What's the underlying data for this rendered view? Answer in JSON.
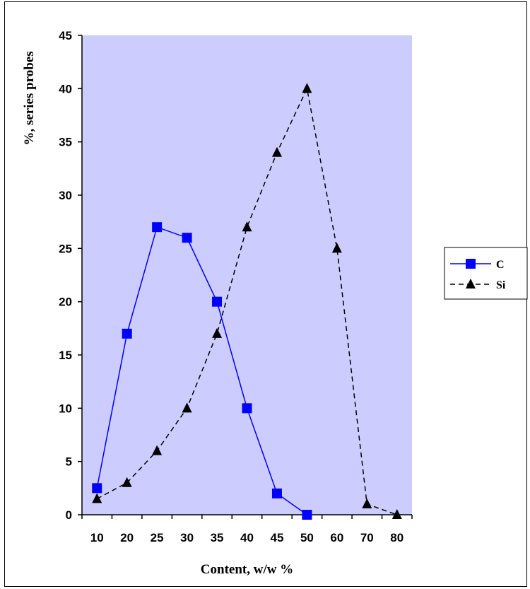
{
  "chart_data": {
    "type": "line",
    "categories": [
      "10",
      "20",
      "25",
      "30",
      "35",
      "40",
      "45",
      "50",
      "60",
      "70",
      "80"
    ],
    "series": [
      {
        "name": "C",
        "values": [
          2.5,
          17,
          27,
          26,
          20,
          10,
          2,
          0,
          null,
          null,
          null
        ],
        "color": "#0000ff",
        "marker": "square",
        "line": "solid"
      },
      {
        "name": "Si",
        "values": [
          1.5,
          3,
          6,
          10,
          17,
          27,
          34,
          40,
          25,
          1,
          0
        ],
        "color": "#000000",
        "marker": "triangle",
        "line": "dashed"
      }
    ],
    "xlabel": "Content, w/w %",
    "ylabel": "%, series probes",
    "ylim": [
      0,
      45
    ],
    "yticks": [
      0,
      5,
      10,
      15,
      20,
      25,
      30,
      35,
      40,
      45
    ],
    "plot_background": "#ccccff",
    "grid": false,
    "legend_position": "right"
  }
}
